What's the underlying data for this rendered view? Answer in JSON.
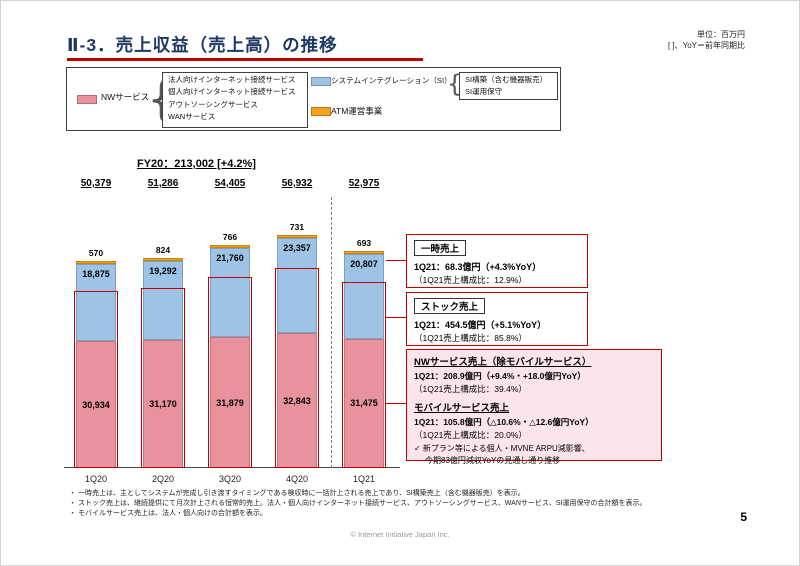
{
  "slide": {
    "title": "Ⅱ-3．売上収益（売上高）の推移",
    "unit_note": "単位：百万円",
    "yoy_note": "[ ]、YoY＝前年同期比",
    "page_number": "5",
    "copyright": "© Internet Initiative Japan Inc."
  },
  "legend": {
    "nw": {
      "label": "NWサービス",
      "color": "#E8929E",
      "items": [
        "法人向けインターネット接続サービス",
        "個人向けインターネット接続サービス",
        "アウトソーシングサービス",
        "WANサービス"
      ]
    },
    "si": {
      "label": "システムインテグレーション（SI）",
      "color": "#9DC3E6",
      "items": [
        "SI構築（含む機器販売）",
        "SI運用保守"
      ]
    },
    "atm": {
      "label": "ATM運営事業",
      "color": "#F6A21D"
    }
  },
  "chart_data": {
    "type": "bar",
    "stacked": true,
    "title": "FY20：213,002 [+4.2%]",
    "unit": "百万円",
    "categories": [
      "1Q20",
      "2Q20",
      "3Q20",
      "4Q20",
      "1Q21"
    ],
    "totals": [
      50379,
      51286,
      54405,
      56932,
      52975
    ],
    "series": [
      {
        "name": "NWサービス",
        "color": "#E8929E",
        "values": [
          30934,
          31170,
          31879,
          32843,
          31475
        ]
      },
      {
        "name": "システムインテグレーション（SI）",
        "color": "#9DC3E6",
        "values": [
          18875,
          19292,
          21760,
          23357,
          20807
        ]
      },
      {
        "name": "ATM運営事業",
        "color": "#F6A21D",
        "values": [
          570,
          824,
          766,
          731,
          693
        ]
      }
    ],
    "stock_ratio": 0.858,
    "accent_color": "#C00000",
    "legend_position": "top",
    "grid": false
  },
  "callouts": {
    "one_time": {
      "title": "一時売上",
      "line1": "1Q21：68.3億円（+4.3%YoY）",
      "line2": "（1Q21売上構成比：12.9%）"
    },
    "stock": {
      "title": "ストック売上",
      "line1": "1Q21：454.5億円（+5.1%YoY）",
      "line2": "（1Q21売上構成比：85.8%）"
    },
    "nw_ex_mobile": {
      "title": "NWサービス売上（除モバイルサービス）",
      "line1": "1Q21：208.9億円（+9.4%・+18.0億円YoY）",
      "line2": "（1Q21売上構成比：39.4%）"
    },
    "mobile": {
      "title": "モバイルサービス売上",
      "line1": "1Q21：105.8億円（△10.6%・△12.6億円YoY）",
      "line2": "（1Q21売上構成比：20.0%）",
      "note1": "✓ 新プラン等による個人・MVNE ARPU減影響、",
      "note2": "今期83億円減収YoYの見通し通り推移"
    }
  },
  "footnotes": [
    "・ 一時売上は、主としてシステムが完成し引き渡すタイミングである検収時に一括計上される売上であり、SI構築売上（含む機器販売）を表示。",
    "・ ストック売上は、継続提供にて月次計上される恒常的売上。法人・個人向けインターネット接続サービス、アウトソーシングサービス、WANサービス、SI運用保守の合計額を表示。",
    "・ モバイルサービス売上は、法人・個人向けの合計額を表示。"
  ]
}
